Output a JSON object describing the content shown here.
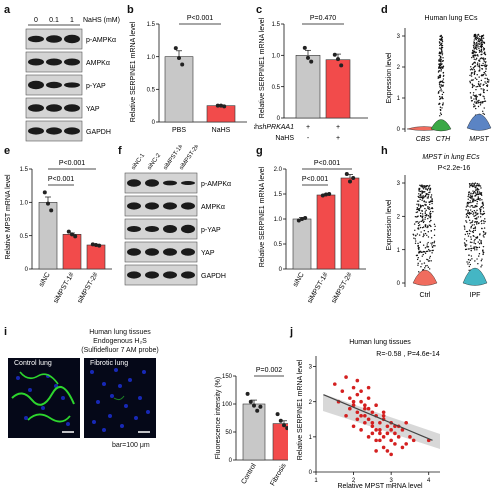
{
  "panels": {
    "a": {
      "letter": "a",
      "concs": [
        "0",
        "0.1",
        "1"
      ],
      "treatment": "NaHS (mM)",
      "bands": [
        "p-AMPKα",
        "AMPKα",
        "p-YAP",
        "YAP",
        "GAPDH"
      ]
    },
    "b": {
      "letter": "b",
      "ylabel": "Relative SERPINE1 mRNA level",
      "pvalue": "P<0.001",
      "yticks": [
        "0",
        "0.5",
        "1.0",
        "1.5"
      ]
    },
    "c": {
      "letter": "c",
      "ylabel": "Relative SERPINE1 mRNA level",
      "pvalue": "P=0.470",
      "yticks": [
        "0",
        "0.5",
        "1.0",
        "1.5"
      ],
      "row1_label": "shPRKAA1",
      "row1_values": [
        "+",
        "+"
      ],
      "row2_label": "NaHS",
      "row2_values": [
        "-",
        "+"
      ]
    },
    "d": {
      "letter": "d",
      "title": "Human lung ECs",
      "ylabel": "Expression level",
      "yticks": [
        "0",
        "1",
        "2",
        "3"
      ]
    },
    "e": {
      "letter": "e",
      "ylabel": "Relative MPST mRNA level",
      "pvalues": [
        "P<0.001",
        "P<0.001"
      ],
      "yticks": [
        "0",
        "0.5",
        "1.0",
        "1.5"
      ]
    },
    "f": {
      "letter": "f",
      "lanes": [
        "siNC-1",
        "siNC-2",
        "siMPST-1#",
        "siMPST-2#"
      ],
      "bands": [
        "p-AMPKα",
        "AMPKα",
        "p-YAP",
        "YAP",
        "GAPDH"
      ]
    },
    "g": {
      "letter": "g",
      "ylabel": "Relative SERPINE1 mRNA level",
      "pvalues": [
        "P<0.001",
        "P<0.001"
      ],
      "yticks": [
        "0",
        "0.5",
        "1.0",
        "1.5",
        "2.0"
      ]
    },
    "h": {
      "letter": "h",
      "title": "MPST in lung ECs",
      "pvalue": "P<2.2e-16",
      "ylabel": "Expression level",
      "yticks": [
        "0",
        "1",
        "2",
        "3"
      ]
    },
    "i": {
      "letter": "i",
      "title_line1": "Human lung tissues",
      "title_line2": "Endogenous H₂S",
      "title_line3": "(Sulfidefluor 7 AM probe)",
      "image_labels": [
        "Control lung",
        "Fibrotic lung"
      ],
      "scalebar": "bar=100 μm",
      "ylabel": "Fluorescence intensity (%)",
      "pvalue": "P=0.002",
      "yticks": [
        "0",
        "50",
        "100",
        "150"
      ]
    },
    "j": {
      "letter": "j",
      "title": "Human lung tissues",
      "stat": "R=-0.58 , P=4.6e-14",
      "ylabel": "Relative SERPINE1 mRNA level",
      "xlabel": "Relative MPST mRNA level",
      "xticks": [
        "1",
        "2",
        "3",
        "4"
      ],
      "yticks": [
        "0",
        "1",
        "2",
        "3"
      ]
    }
  },
  "colors": {
    "gray": "#c8c8c8",
    "red": "#f24b4b",
    "dot_red": "#d42020",
    "black": "#111111"
  },
  "chart_data": [
    {
      "panel": "b",
      "type": "bar",
      "categories": [
        "PBS",
        "NaHS"
      ],
      "values": [
        1.0,
        0.25
      ],
      "ylim": [
        0,
        1.5
      ],
      "points": [
        [
          1.13,
          0.98,
          0.88
        ],
        [
          0.25,
          0.25,
          0.24
        ]
      ],
      "errors": [
        0.09,
        0.01
      ],
      "colors": [
        "#c8c8c8",
        "#f24b4b"
      ]
    },
    {
      "panel": "c",
      "type": "bar",
      "categories": [
        "",
        ""
      ],
      "values": [
        1.0,
        0.93
      ],
      "ylim": [
        0,
        1.5
      ],
      "points": [
        [
          1.12,
          0.96,
          0.9
        ],
        [
          1.01,
          0.94,
          0.84
        ]
      ],
      "errors": [
        0.08,
        0.09
      ],
      "colors": [
        "#c8c8c8",
        "#f24b4b"
      ]
    },
    {
      "panel": "e",
      "type": "bar",
      "categories": [
        "siNC",
        "siMPST-1#",
        "siMPST-2#"
      ],
      "values": [
        1.0,
        0.52,
        0.36
      ],
      "ylim": [
        0,
        1.5
      ],
      "points": [
        [
          1.15,
          0.98,
          0.88
        ],
        [
          0.56,
          0.52,
          0.49
        ],
        [
          0.37,
          0.36,
          0.35
        ]
      ],
      "errors": [
        0.08,
        0.02,
        0.01
      ],
      "colors": [
        "#c8c8c8",
        "#f24b4b",
        "#f24b4b"
      ]
    },
    {
      "panel": "g",
      "type": "bar",
      "categories": [
        "siNC",
        "siMPST-1#",
        "siMPST-2#"
      ],
      "values": [
        1.0,
        1.48,
        1.82
      ],
      "ylim": [
        0,
        2.0
      ],
      "points": [
        [
          0.97,
          1.0,
          1.02
        ],
        [
          1.47,
          1.49,
          1.5
        ],
        [
          1.9,
          1.75,
          1.82
        ]
      ],
      "errors": [
        0.03,
        0.02,
        0.07
      ],
      "colors": [
        "#c8c8c8",
        "#f24b4b",
        "#f24b4b"
      ]
    },
    {
      "panel": "i",
      "type": "bar",
      "categories": [
        "Control",
        "Fibrosis"
      ],
      "values": [
        100,
        65
      ],
      "ylim": [
        0,
        150
      ],
      "points": [
        [
          118,
          104,
          97,
          88,
          95
        ],
        [
          82,
          70,
          62,
          57,
          55
        ]
      ],
      "errors": [
        7,
        5
      ],
      "colors": [
        "#c8c8c8",
        "#f24b4b"
      ]
    },
    {
      "panel": "j",
      "type": "scatter",
      "xlim": [
        1,
        4.3
      ],
      "ylim": [
        0,
        3.3
      ],
      "fit": {
        "x": [
          1.2,
          4.1
        ],
        "y": [
          2.2,
          0.9
        ]
      },
      "x": [
        1.5,
        1.7,
        1.8,
        1.9,
        2.0,
        2.0,
        2.1,
        2.1,
        2.2,
        2.2,
        2.3,
        2.3,
        2.4,
        2.4,
        2.5,
        2.5,
        2.6,
        2.6,
        2.7,
        2.7,
        2.8,
        2.8,
        2.9,
        3.0,
        3.0,
        3.1,
        3.2,
        3.3,
        3.4,
        3.6,
        1.9,
        2.1,
        2.3,
        2.5,
        2.7,
        2.9,
        3.1,
        2.2,
        2.4,
        2.6,
        2.8,
        3.0,
        1.8,
        2.0,
        2.2,
        2.4,
        2.6,
        2.8,
        3.2,
        3.5,
        2.0,
        2.3,
        2.5,
        2.7,
        2.9,
        3.1,
        3.3,
        1.6,
        2.1,
        2.4,
        2.6,
        2.8,
        3.0,
        3.4,
        4.0
      ],
      "y": [
        2.5,
        2.3,
        2.7,
        2.1,
        2.4,
        1.9,
        2.2,
        1.7,
        2.0,
        1.6,
        1.9,
        1.4,
        1.8,
        1.5,
        1.7,
        1.3,
        1.6,
        1.2,
        1.4,
        1.1,
        1.5,
        1.0,
        1.3,
        1.2,
        0.9,
        1.1,
        1.0,
        1.2,
        0.8,
        0.9,
        1.8,
        1.5,
        1.6,
        1.4,
        1.2,
        1.1,
        0.8,
        2.3,
        2.1,
        1.9,
        1.7,
        1.4,
        1.6,
        1.3,
        1.2,
        1.0,
        0.9,
        0.7,
        1.3,
        1.0,
        2.0,
        1.8,
        1.1,
        0.9,
        0.6,
        1.3,
        0.7,
        2.0,
        2.6,
        2.4,
        0.6,
        1.6,
        0.5,
        1.4,
        0.9
      ]
    }
  ]
}
